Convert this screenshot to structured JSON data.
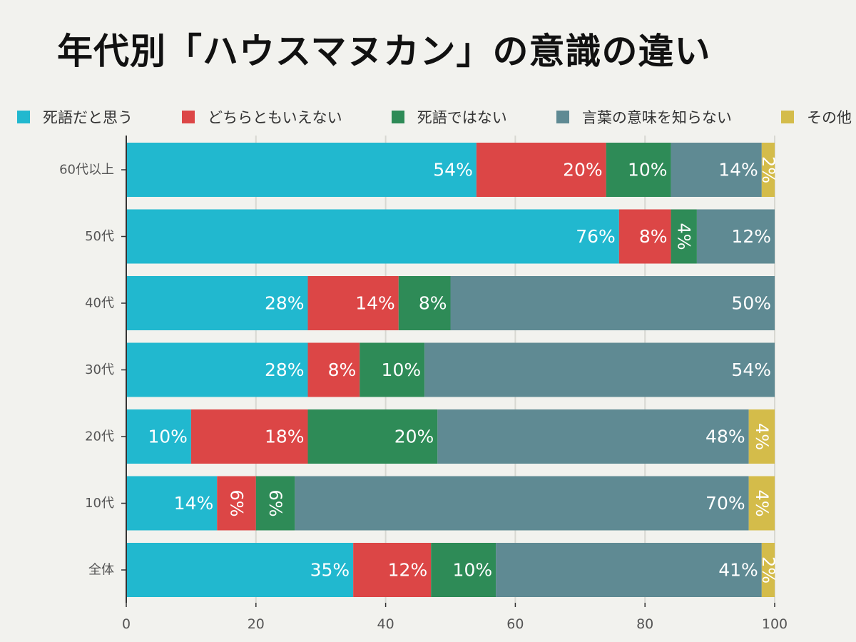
{
  "title": "年代別「ハウスマヌカン」の意識の違い",
  "colors": {
    "background": "#f2f2ee",
    "grid": "#d8d8d2",
    "axis": "#333333",
    "text": "#555555",
    "data_label": "#ffffff"
  },
  "chart_data": {
    "type": "bar",
    "orientation": "horizontal",
    "stacked": true,
    "title": "年代別「ハウスマヌカン」の意識の違い",
    "categories": [
      "60代以上",
      "50代",
      "40代",
      "30代",
      "20代",
      "10代",
      "全体"
    ],
    "series": [
      {
        "name": "死語だと思う",
        "color": "#21b8cf",
        "values": [
          54,
          76,
          28,
          28,
          10,
          14,
          35
        ],
        "labels": [
          "54%",
          "76%",
          "28%",
          "28%",
          "10%",
          "14%",
          "35%"
        ]
      },
      {
        "name": "どちらともいえない",
        "color": "#dc4646",
        "values": [
          20,
          8,
          14,
          8,
          18,
          6,
          12
        ],
        "labels": [
          "20%",
          "8%",
          "14%",
          "8%",
          "18%",
          "6%",
          "12%"
        ]
      },
      {
        "name": "死語ではない",
        "color": "#2e8b57",
        "values": [
          10,
          4,
          8,
          10,
          20,
          6,
          10
        ],
        "labels": [
          "10%",
          "4%",
          "8%",
          "10%",
          "20%",
          "6%",
          "10%"
        ]
      },
      {
        "name": "言葉の意味を知らない",
        "color": "#5f8a93",
        "values": [
          14,
          12,
          50,
          54,
          48,
          70,
          41
        ],
        "labels": [
          "14%",
          "12%",
          "50%",
          "54%",
          "48%",
          "70%",
          "41%"
        ]
      },
      {
        "name": "その他",
        "color": "#d4bc4a",
        "values": [
          2,
          0,
          0,
          0,
          4,
          4,
          2
        ],
        "labels": [
          "2%",
          "",
          "",
          "",
          "4%",
          "4%",
          "2%"
        ]
      }
    ],
    "xlim": [
      0,
      100
    ],
    "xticks": [
      "0",
      "20",
      "40",
      "60",
      "80",
      "100"
    ],
    "grid": true,
    "legend_position": "top"
  }
}
